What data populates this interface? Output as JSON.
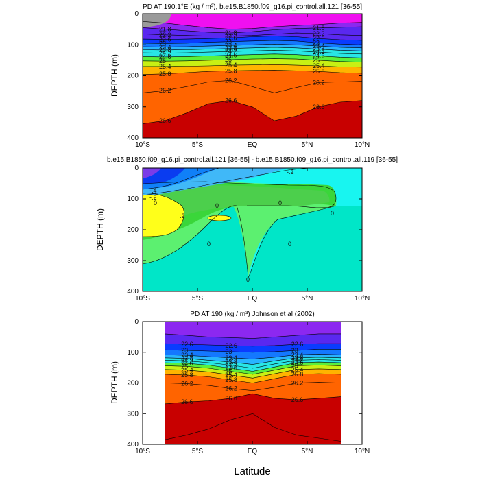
{
  "chart_data": [
    {
      "type": "contour",
      "title": "PD AT 190.1°E (kg / m³), b.e15.B1850.f09_g16.pi_control.all.121 [36-55]",
      "ylabel": "DEPTH (m)",
      "xlabel": "",
      "xlim": [
        -10,
        10
      ],
      "ylim": [
        400,
        0
      ],
      "xticks": [
        "10°S",
        "5°S",
        "EQ",
        "5°N",
        "10°N"
      ],
      "yticks": [
        "0",
        "100",
        "200",
        "300",
        "400"
      ],
      "contour_labels": [
        "21.8",
        "22.2",
        "22.6",
        "23",
        "23.4",
        "23.8",
        "24.2",
        "24.6",
        "25",
        "25.4",
        "25.8",
        "26.2",
        "26.6"
      ],
      "isopycnals": [
        {
          "value": 21.4,
          "depths": [
            25,
            30,
            38,
            45,
            50,
            48,
            42,
            38,
            35,
            30,
            28
          ]
        },
        {
          "value": 21.8,
          "depths": [
            45,
            50,
            55,
            60,
            62,
            58,
            52,
            48,
            46,
            44,
            42
          ]
        },
        {
          "value": 22.2,
          "depths": [
            65,
            68,
            70,
            72,
            72,
            70,
            66,
            62,
            64,
            68,
            70
          ]
        },
        {
          "value": 22.6,
          "depths": [
            82,
            83,
            82,
            80,
            78,
            74,
            72,
            74,
            80,
            84,
            86
          ]
        },
        {
          "value": 23.0,
          "depths": [
            95,
            96,
            95,
            92,
            90,
            88,
            86,
            88,
            94,
            98,
            100
          ]
        },
        {
          "value": 23.4,
          "depths": [
            106,
            107,
            106,
            104,
            102,
            100,
            98,
            100,
            104,
            108,
            110
          ]
        },
        {
          "value": 23.8,
          "depths": [
            116,
            117,
            116,
            114,
            112,
            110,
            108,
            110,
            114,
            118,
            120
          ]
        },
        {
          "value": 24.2,
          "depths": [
            126,
            127,
            126,
            124,
            122,
            120,
            118,
            120,
            124,
            128,
            130
          ]
        },
        {
          "value": 24.6,
          "depths": [
            138,
            139,
            138,
            136,
            134,
            132,
            130,
            132,
            136,
            140,
            142
          ]
        },
        {
          "value": 25.0,
          "depths": [
            152,
            153,
            152,
            150,
            148,
            146,
            145,
            146,
            150,
            154,
            156
          ]
        },
        {
          "value": 25.4,
          "depths": [
            170,
            170,
            169,
            168,
            166,
            165,
            164,
            166,
            168,
            171,
            172
          ]
        },
        {
          "value": 25.8,
          "depths": [
            196,
            194,
            190,
            186,
            184,
            183,
            182,
            184,
            186,
            190,
            192
          ]
        },
        {
          "value": 26.2,
          "depths": [
            255,
            248,
            235,
            220,
            215,
            235,
            255,
            238,
            222,
            220,
            218
          ]
        },
        {
          "value": 26.6,
          "depths": [
            355,
            345,
            320,
            290,
            280,
            300,
            345,
            330,
            300,
            285,
            280
          ]
        }
      ]
    },
    {
      "type": "contour",
      "title": "b.e15.B1850.f09_g16.pi_control.all.121 [36-55] - b.e15.B1850.f09_g16.pi_control.all.119 [36-55]",
      "ylabel": "DEPTH (m)",
      "xlabel": "",
      "xlim": [
        -10,
        10
      ],
      "ylim": [
        400,
        0
      ],
      "xticks": [
        "10°S",
        "5°S",
        "EQ",
        "5°N",
        "10°N"
      ],
      "yticks": [
        "0",
        "100",
        "200",
        "300",
        "400"
      ],
      "contour_labels": [
        "-.4",
        "-.2",
        "0",
        ".2"
      ],
      "regions": [
        {
          "value": -0.4,
          "description": "upper-left near surface"
        },
        {
          "value": 0.2,
          "description": "patches near 150 m"
        }
      ]
    },
    {
      "type": "contour",
      "title": "PD AT 190 (kg / m³) Johnson et al (2002)",
      "ylabel": "DEPTH (m)",
      "xlabel": "Latitude",
      "xlim": [
        -10,
        10
      ],
      "ylim": [
        400,
        0
      ],
      "data_xlim": [
        -8,
        8
      ],
      "xticks": [
        "10°S",
        "5°S",
        "EQ",
        "5°N",
        "10°N"
      ],
      "yticks": [
        "0",
        "100",
        "200",
        "300",
        "400"
      ],
      "contour_labels": [
        "22.6",
        "23",
        "23.4",
        "23.8",
        "24.2",
        "24.6",
        "25",
        "25.4",
        "25.8",
        "26.2",
        "26.6"
      ],
      "isopycnals": [
        {
          "value": 22.2,
          "depths": [
            40,
            45,
            50,
            52,
            55,
            50,
            45,
            40,
            40
          ]
        },
        {
          "value": 22.6,
          "depths": [
            72,
            74,
            76,
            78,
            80,
            78,
            74,
            72,
            72
          ]
        },
        {
          "value": 23.0,
          "depths": [
            92,
            94,
            96,
            98,
            100,
            98,
            94,
            90,
            90
          ]
        },
        {
          "value": 23.4,
          "depths": [
            108,
            110,
            114,
            118,
            122,
            116,
            108,
            106,
            108
          ]
        },
        {
          "value": 23.8,
          "depths": [
            118,
            120,
            126,
            132,
            140,
            128,
            118,
            116,
            118
          ]
        },
        {
          "value": 24.2,
          "depths": [
            126,
            128,
            134,
            142,
            152,
            138,
            126,
            124,
            126
          ]
        },
        {
          "value": 24.6,
          "depths": [
            134,
            136,
            142,
            152,
            162,
            148,
            134,
            132,
            134
          ]
        },
        {
          "value": 25.0,
          "depths": [
            144,
            146,
            152,
            162,
            172,
            158,
            144,
            142,
            144
          ]
        },
        {
          "value": 25.4,
          "depths": [
            156,
            158,
            164,
            174,
            184,
            170,
            156,
            154,
            156
          ]
        },
        {
          "value": 25.8,
          "depths": [
            172,
            174,
            180,
            190,
            200,
            186,
            172,
            170,
            172
          ]
        },
        {
          "value": 26.2,
          "depths": [
            200,
            202,
            208,
            218,
            225,
            214,
            200,
            198,
            200
          ]
        },
        {
          "value": 26.6,
          "depths": [
            268,
            262,
            258,
            250,
            235,
            250,
            255,
            250,
            245
          ]
        },
        {
          "value": 27.0,
          "depths": [
            385,
            370,
            350,
            320,
            300,
            345,
            370,
            380,
            390
          ]
        }
      ]
    }
  ]
}
